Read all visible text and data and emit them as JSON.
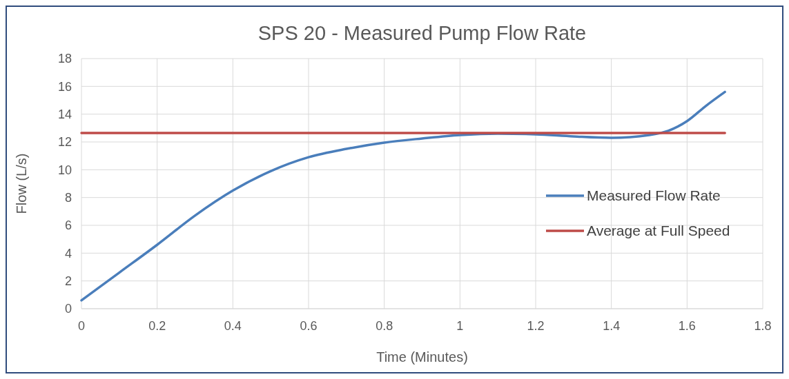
{
  "chart_data": {
    "type": "line",
    "title": "SPS 20 - Measured Pump Flow Rate",
    "xlabel": "Time (Minutes)",
    "ylabel": "Flow (L/s)",
    "xlim": [
      0,
      1.8
    ],
    "xticks": [
      0,
      0.2,
      0.4,
      0.6,
      0.8,
      1,
      1.2,
      1.4,
      1.6,
      1.8
    ],
    "ylim": [
      0,
      18
    ],
    "yticks": [
      0,
      2,
      4,
      6,
      8,
      10,
      12,
      14,
      16,
      18
    ],
    "grid": true,
    "legend": "right",
    "series": [
      {
        "name": "Measured Flow Rate",
        "color": "#4a7ebb",
        "x": [
          0,
          0.1,
          0.2,
          0.3,
          0.4,
          0.5,
          0.6,
          0.7,
          0.8,
          0.9,
          1.0,
          1.1,
          1.2,
          1.3,
          1.4,
          1.5,
          1.55,
          1.6,
          1.65,
          1.7
        ],
        "values": [
          0.6,
          2.6,
          4.6,
          6.7,
          8.5,
          9.9,
          10.9,
          11.5,
          11.95,
          12.25,
          12.5,
          12.6,
          12.55,
          12.4,
          12.3,
          12.5,
          12.8,
          13.5,
          14.6,
          15.6
        ]
      },
      {
        "name": "Average at Full Speed",
        "color": "#be4b48",
        "x": [
          0,
          1.7
        ],
        "values": [
          12.65,
          12.65
        ]
      }
    ]
  }
}
